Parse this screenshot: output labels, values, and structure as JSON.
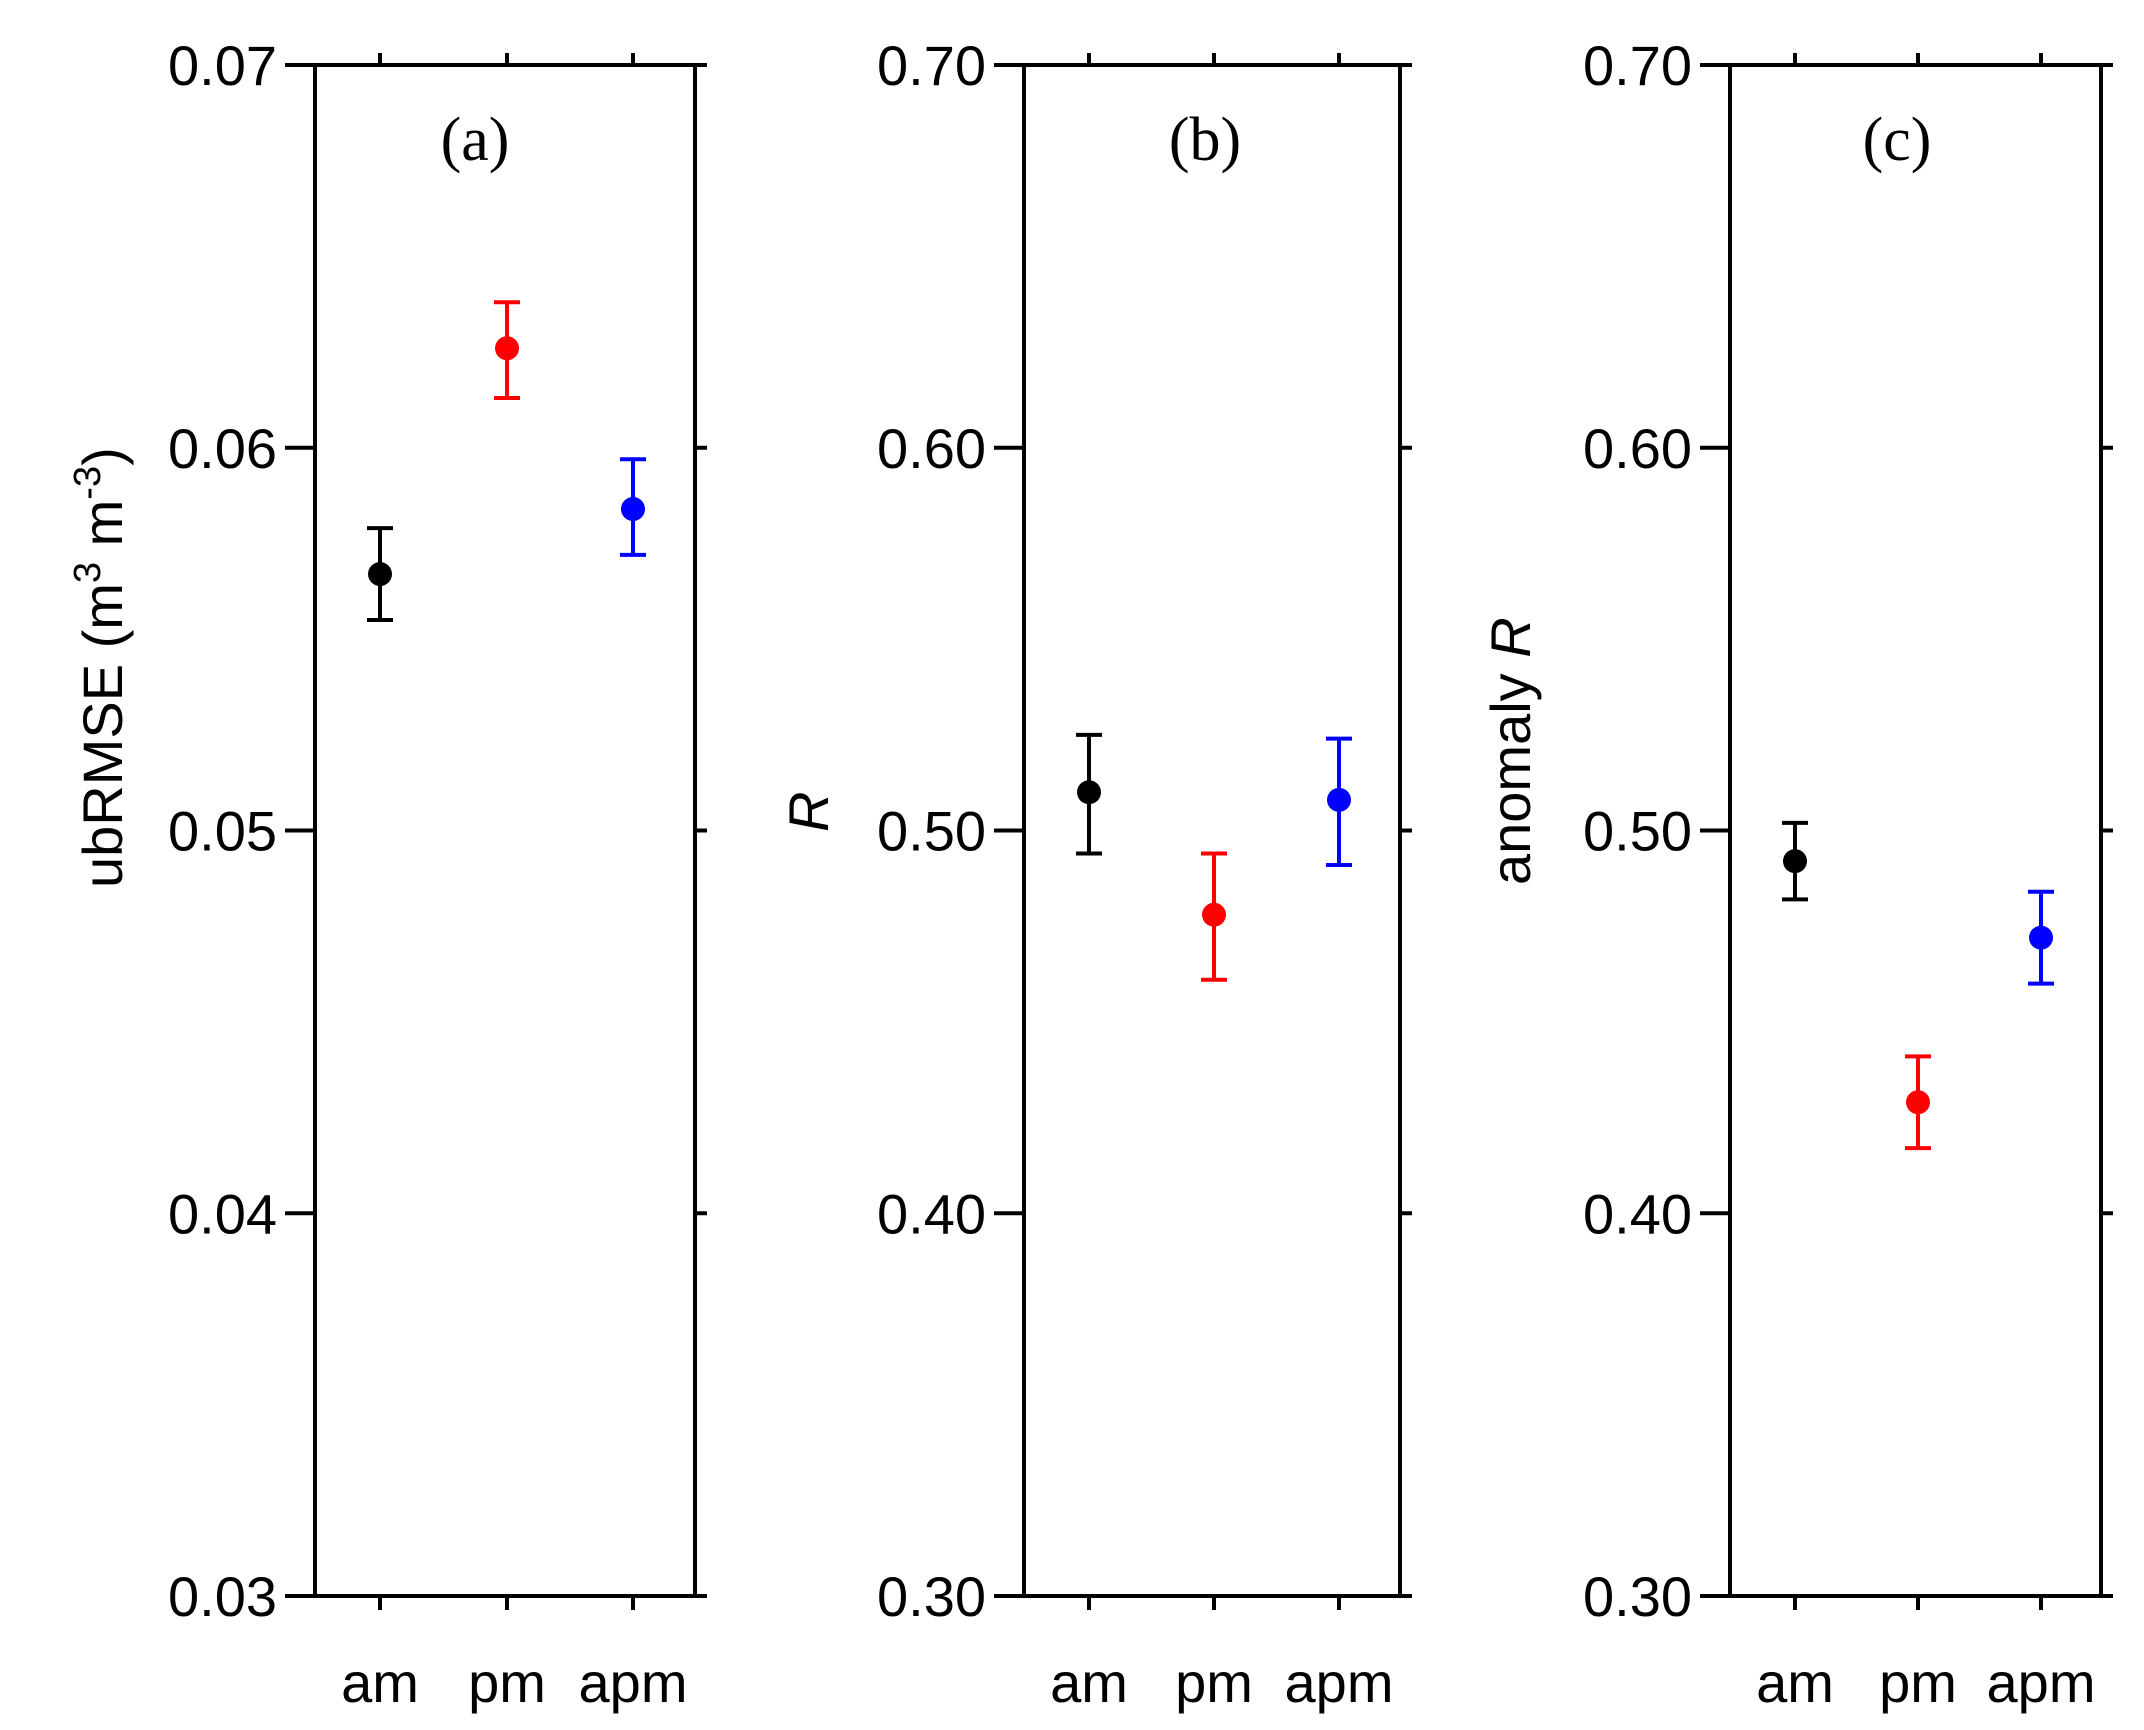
{
  "chart_data": [
    {
      "type": "errorbar",
      "panel_label": "(a)",
      "ylabel": {
        "text": "ubRMSE (m",
        "sup1": "3",
        "mid": " m",
        "sup2": "-3",
        "end": ")",
        "italic_suffix": ""
      },
      "ylim": [
        0.03,
        0.07
      ],
      "yticks": [
        0.03,
        0.04,
        0.05,
        0.06,
        0.07
      ],
      "ytick_labels": [
        "0.03",
        "0.04",
        "0.05",
        "0.06",
        "0.07"
      ],
      "categories": [
        "am",
        "pm",
        "apm"
      ],
      "colors": [
        "#000000",
        "#ff0000",
        "#0000ff"
      ],
      "values": [
        0.0567,
        0.0626,
        0.0584
      ],
      "lower": [
        0.0555,
        0.0613,
        0.0572
      ],
      "upper": [
        0.0579,
        0.0638,
        0.0597
      ]
    },
    {
      "type": "errorbar",
      "panel_label": "(b)",
      "ylabel": {
        "text": "",
        "italic_suffix": "R"
      },
      "ylim": [
        0.3,
        0.7
      ],
      "yticks": [
        0.3,
        0.4,
        0.5,
        0.6,
        0.7
      ],
      "ytick_labels": [
        "0.30",
        "0.40",
        "0.50",
        "0.60",
        "0.70"
      ],
      "categories": [
        "am",
        "pm",
        "apm"
      ],
      "colors": [
        "#000000",
        "#ff0000",
        "#0000ff"
      ],
      "values": [
        0.51,
        0.478,
        0.508
      ],
      "lower": [
        0.494,
        0.461,
        0.491
      ],
      "upper": [
        0.525,
        0.494,
        0.524
      ]
    },
    {
      "type": "errorbar",
      "panel_label": "(c)",
      "ylabel": {
        "text": "anomaly ",
        "italic_suffix": "R"
      },
      "ylim": [
        0.3,
        0.7
      ],
      "yticks": [
        0.3,
        0.4,
        0.5,
        0.6,
        0.7
      ],
      "ytick_labels": [
        "0.30",
        "0.40",
        "0.50",
        "0.60",
        "0.70"
      ],
      "categories": [
        "am",
        "pm",
        "apm"
      ],
      "colors": [
        "#000000",
        "#ff0000",
        "#0000ff"
      ],
      "values": [
        0.492,
        0.429,
        0.472
      ],
      "lower": [
        0.482,
        0.417,
        0.46
      ],
      "upper": [
        0.502,
        0.441,
        0.484
      ]
    }
  ]
}
